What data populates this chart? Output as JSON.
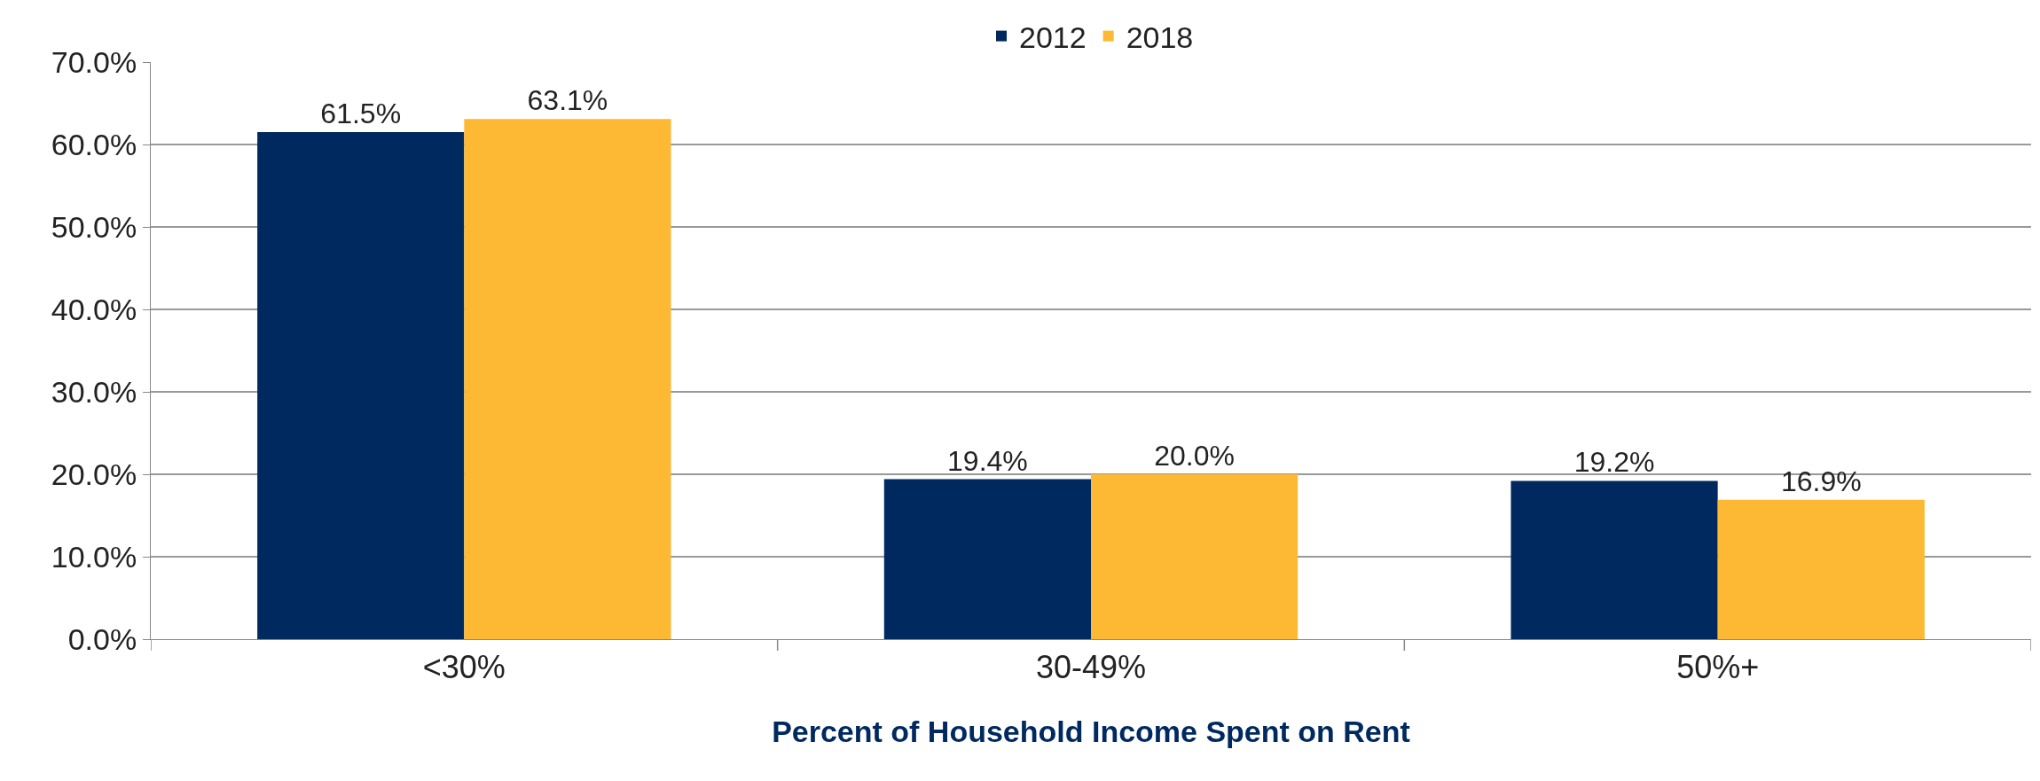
{
  "chart_data": {
    "type": "bar",
    "xlabel": "Percent of Household Income Spent on Rent",
    "categories": [
      "<30%",
      "30-49%",
      "50%+"
    ],
    "series": [
      {
        "name": "2012",
        "color": "#002960",
        "values": [
          61.5,
          19.4,
          19.2
        ],
        "value_labels": [
          "61.5%",
          "19.4%",
          "19.2%"
        ]
      },
      {
        "name": "2018",
        "color": "#fdb933",
        "values": [
          63.1,
          20.0,
          16.9
        ],
        "value_labels": [
          "63.1%",
          "20.0%",
          "16.9%"
        ]
      }
    ],
    "ylim": [
      0,
      70
    ],
    "yticks": [
      {
        "value": 0,
        "label": "0.0%"
      },
      {
        "value": 10,
        "label": "10.0%"
      },
      {
        "value": 20,
        "label": "20.0%"
      },
      {
        "value": 30,
        "label": "30.0%"
      },
      {
        "value": 40,
        "label": "40.0%"
      },
      {
        "value": 50,
        "label": "50.0%"
      },
      {
        "value": 60,
        "label": "60.0%"
      },
      {
        "value": 70,
        "label": "70.0%"
      }
    ],
    "grid": "y",
    "legend": "top"
  }
}
